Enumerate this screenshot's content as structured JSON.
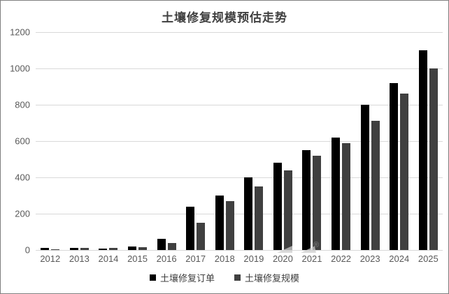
{
  "chart_data": {
    "type": "bar",
    "title": "土壤修复规模预估走势",
    "categories": [
      "2012",
      "2013",
      "2014",
      "2015",
      "2016",
      "2017",
      "2018",
      "2019",
      "2020",
      "2021",
      "2022",
      "2023",
      "2024",
      "2025"
    ],
    "series": [
      {
        "name": "土壤修复订单",
        "color": "#000000",
        "values": [
          10,
          10,
          8,
          20,
          60,
          240,
          300,
          400,
          480,
          550,
          620,
          800,
          920,
          1100
        ]
      },
      {
        "name": "土壤修复规模",
        "color": "#404040",
        "values": [
          5,
          10,
          10,
          15,
          40,
          150,
          270,
          350,
          440,
          520,
          590,
          710,
          860,
          1000
        ]
      }
    ],
    "xlabel": "",
    "ylabel": "",
    "ylim": [
      0,
      1200
    ],
    "yticks": [
      0,
      200,
      400,
      600,
      800,
      1000,
      1200
    ],
    "grid": "horizontal",
    "legend_position": "bottom"
  },
  "watermark": {
    "registered_mark": "®"
  },
  "colors": {
    "series1": "#000000",
    "series2": "#404040",
    "gridline": "#d9d9d9",
    "axis_text": "#595959",
    "title_text": "#404040",
    "frame_border": "#7f7f7f",
    "background": "#ffffff"
  }
}
